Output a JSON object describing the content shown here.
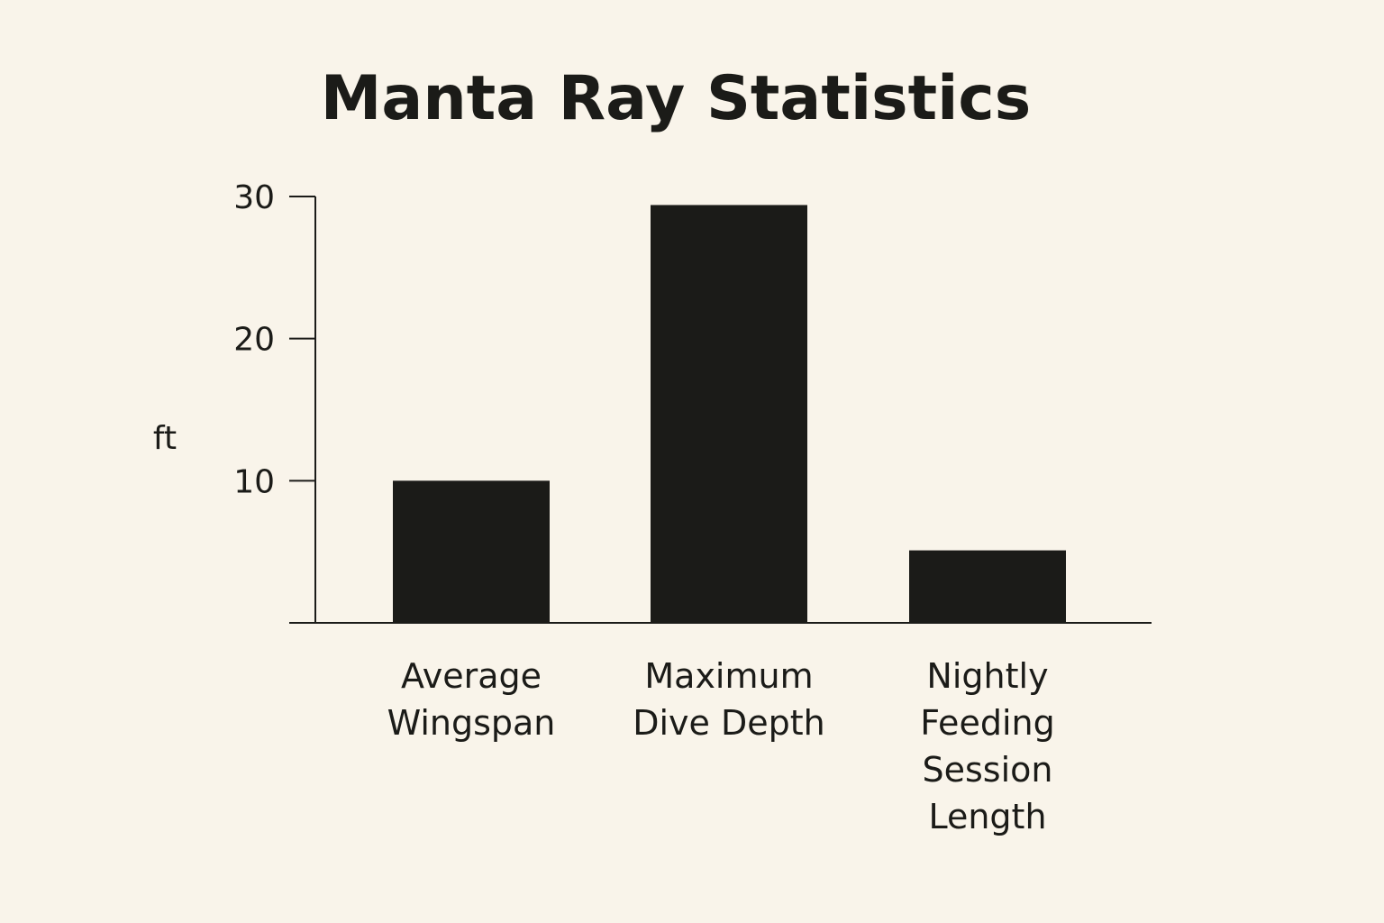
{
  "chart_data": {
    "type": "bar",
    "title": "Manta Ray Statistics",
    "xlabel": "",
    "ylabel": "ft",
    "ylim": [
      0,
      30
    ],
    "yticks": [
      10,
      20,
      30
    ],
    "categories": [
      "Average Wingspan",
      "Maximum Dive Depth",
      "Nightly Feeding Session Length"
    ],
    "category_lines": [
      [
        "Average",
        "Wingspan"
      ],
      [
        "Maximum",
        "Dive Depth"
      ],
      [
        "Nightly",
        "Feeding",
        "Session",
        "Length"
      ]
    ],
    "values": [
      10,
      29.4,
      5.1
    ],
    "bar_color": "#1b1b18",
    "background_color": "#f9f4ea",
    "grid": false,
    "legend": "none"
  }
}
